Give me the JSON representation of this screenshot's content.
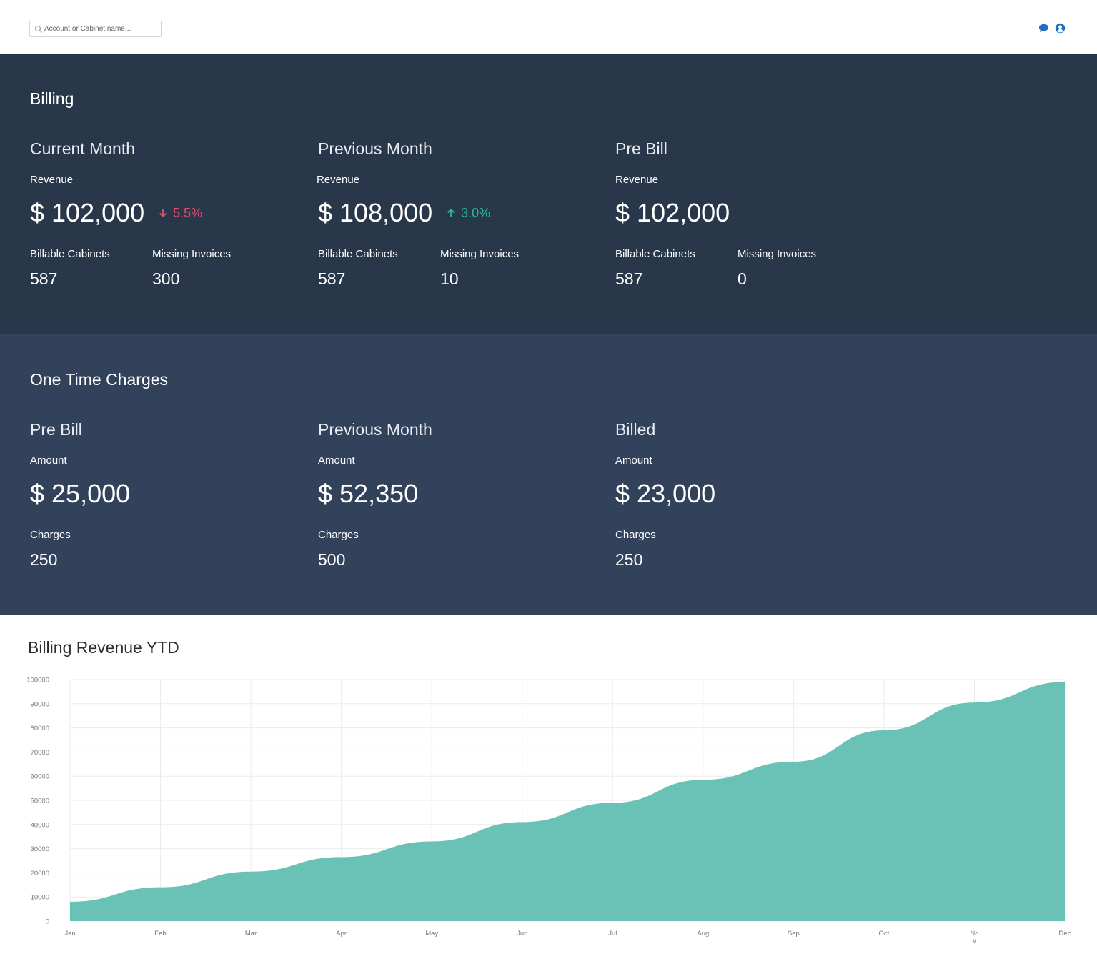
{
  "search": {
    "placeholder": "Account or Cabinet name..."
  },
  "header_icons": [
    "chat-icon",
    "user-icon"
  ],
  "billing": {
    "title": "Billing",
    "columns": [
      {
        "heading": "Current Month",
        "label": "Revenue",
        "amount": "$ 102,000",
        "trend": {
          "direction": "down",
          "value": "5.5%"
        },
        "stats": [
          {
            "label": "Billable Cabinets",
            "value": "587"
          },
          {
            "label": "Missing Invoices",
            "value": "300"
          }
        ]
      },
      {
        "heading": "Previous Month",
        "label": "Revenue",
        "amount": "$ 108,000",
        "trend": {
          "direction": "up",
          "value": "3.0%"
        },
        "stats": [
          {
            "label": "Billable Cabinets",
            "value": "587"
          },
          {
            "label": "Missing Invoices",
            "value": "10"
          }
        ]
      },
      {
        "heading": "Pre Bill",
        "label": "Revenue",
        "amount": "$ 102,000",
        "stats": [
          {
            "label": "Billable Cabinets",
            "value": "587"
          },
          {
            "label": "Missing Invoices",
            "value": "0"
          }
        ]
      }
    ]
  },
  "one_time_charges": {
    "title": "One Time Charges",
    "columns": [
      {
        "heading": "Pre Bill",
        "label": "Amount",
        "amount": "$ 25,000",
        "stats": [
          {
            "label": "Charges",
            "value": "250"
          }
        ]
      },
      {
        "heading": "Previous Month",
        "label": "Amount",
        "amount": "$ 52,350",
        "stats": [
          {
            "label": "Charges",
            "value": "500"
          }
        ]
      },
      {
        "heading": "Billed",
        "label": "Amount",
        "amount": "$ 23,000",
        "stats": [
          {
            "label": "Charges",
            "value": "250"
          }
        ]
      }
    ]
  },
  "colors": {
    "billing_bg": "#28374a",
    "otc_bg": "#33425b",
    "trend_down": "#e0506a",
    "trend_up": "#2bb99a",
    "area_fill": "#6ac2b7",
    "icon_blue": "#1f6fc0"
  },
  "chart_data": {
    "type": "area",
    "title": "Billing Revenue YTD",
    "categories": [
      "Jan",
      "Feb",
      "Mar",
      "Apr",
      "May",
      "Jun",
      "Jul",
      "Aug",
      "Sep",
      "Oct",
      "Nov",
      "Dec"
    ],
    "category_labels": [
      "Jan",
      "Feb",
      "Mar",
      "Apr",
      "May",
      "Jun",
      "Jul",
      "Aug",
      "Sep",
      "Oct",
      "No\nv",
      "Dec"
    ],
    "values": [
      8000,
      14000,
      20500,
      26500,
      33000,
      41000,
      49000,
      58500,
      66000,
      79000,
      90500,
      99000
    ],
    "ylim": [
      0,
      100000
    ],
    "yticks": [
      0,
      10000,
      20000,
      30000,
      40000,
      50000,
      60000,
      70000,
      80000,
      90000,
      100000
    ],
    "grid": true,
    "xlabel": "",
    "ylabel": ""
  }
}
